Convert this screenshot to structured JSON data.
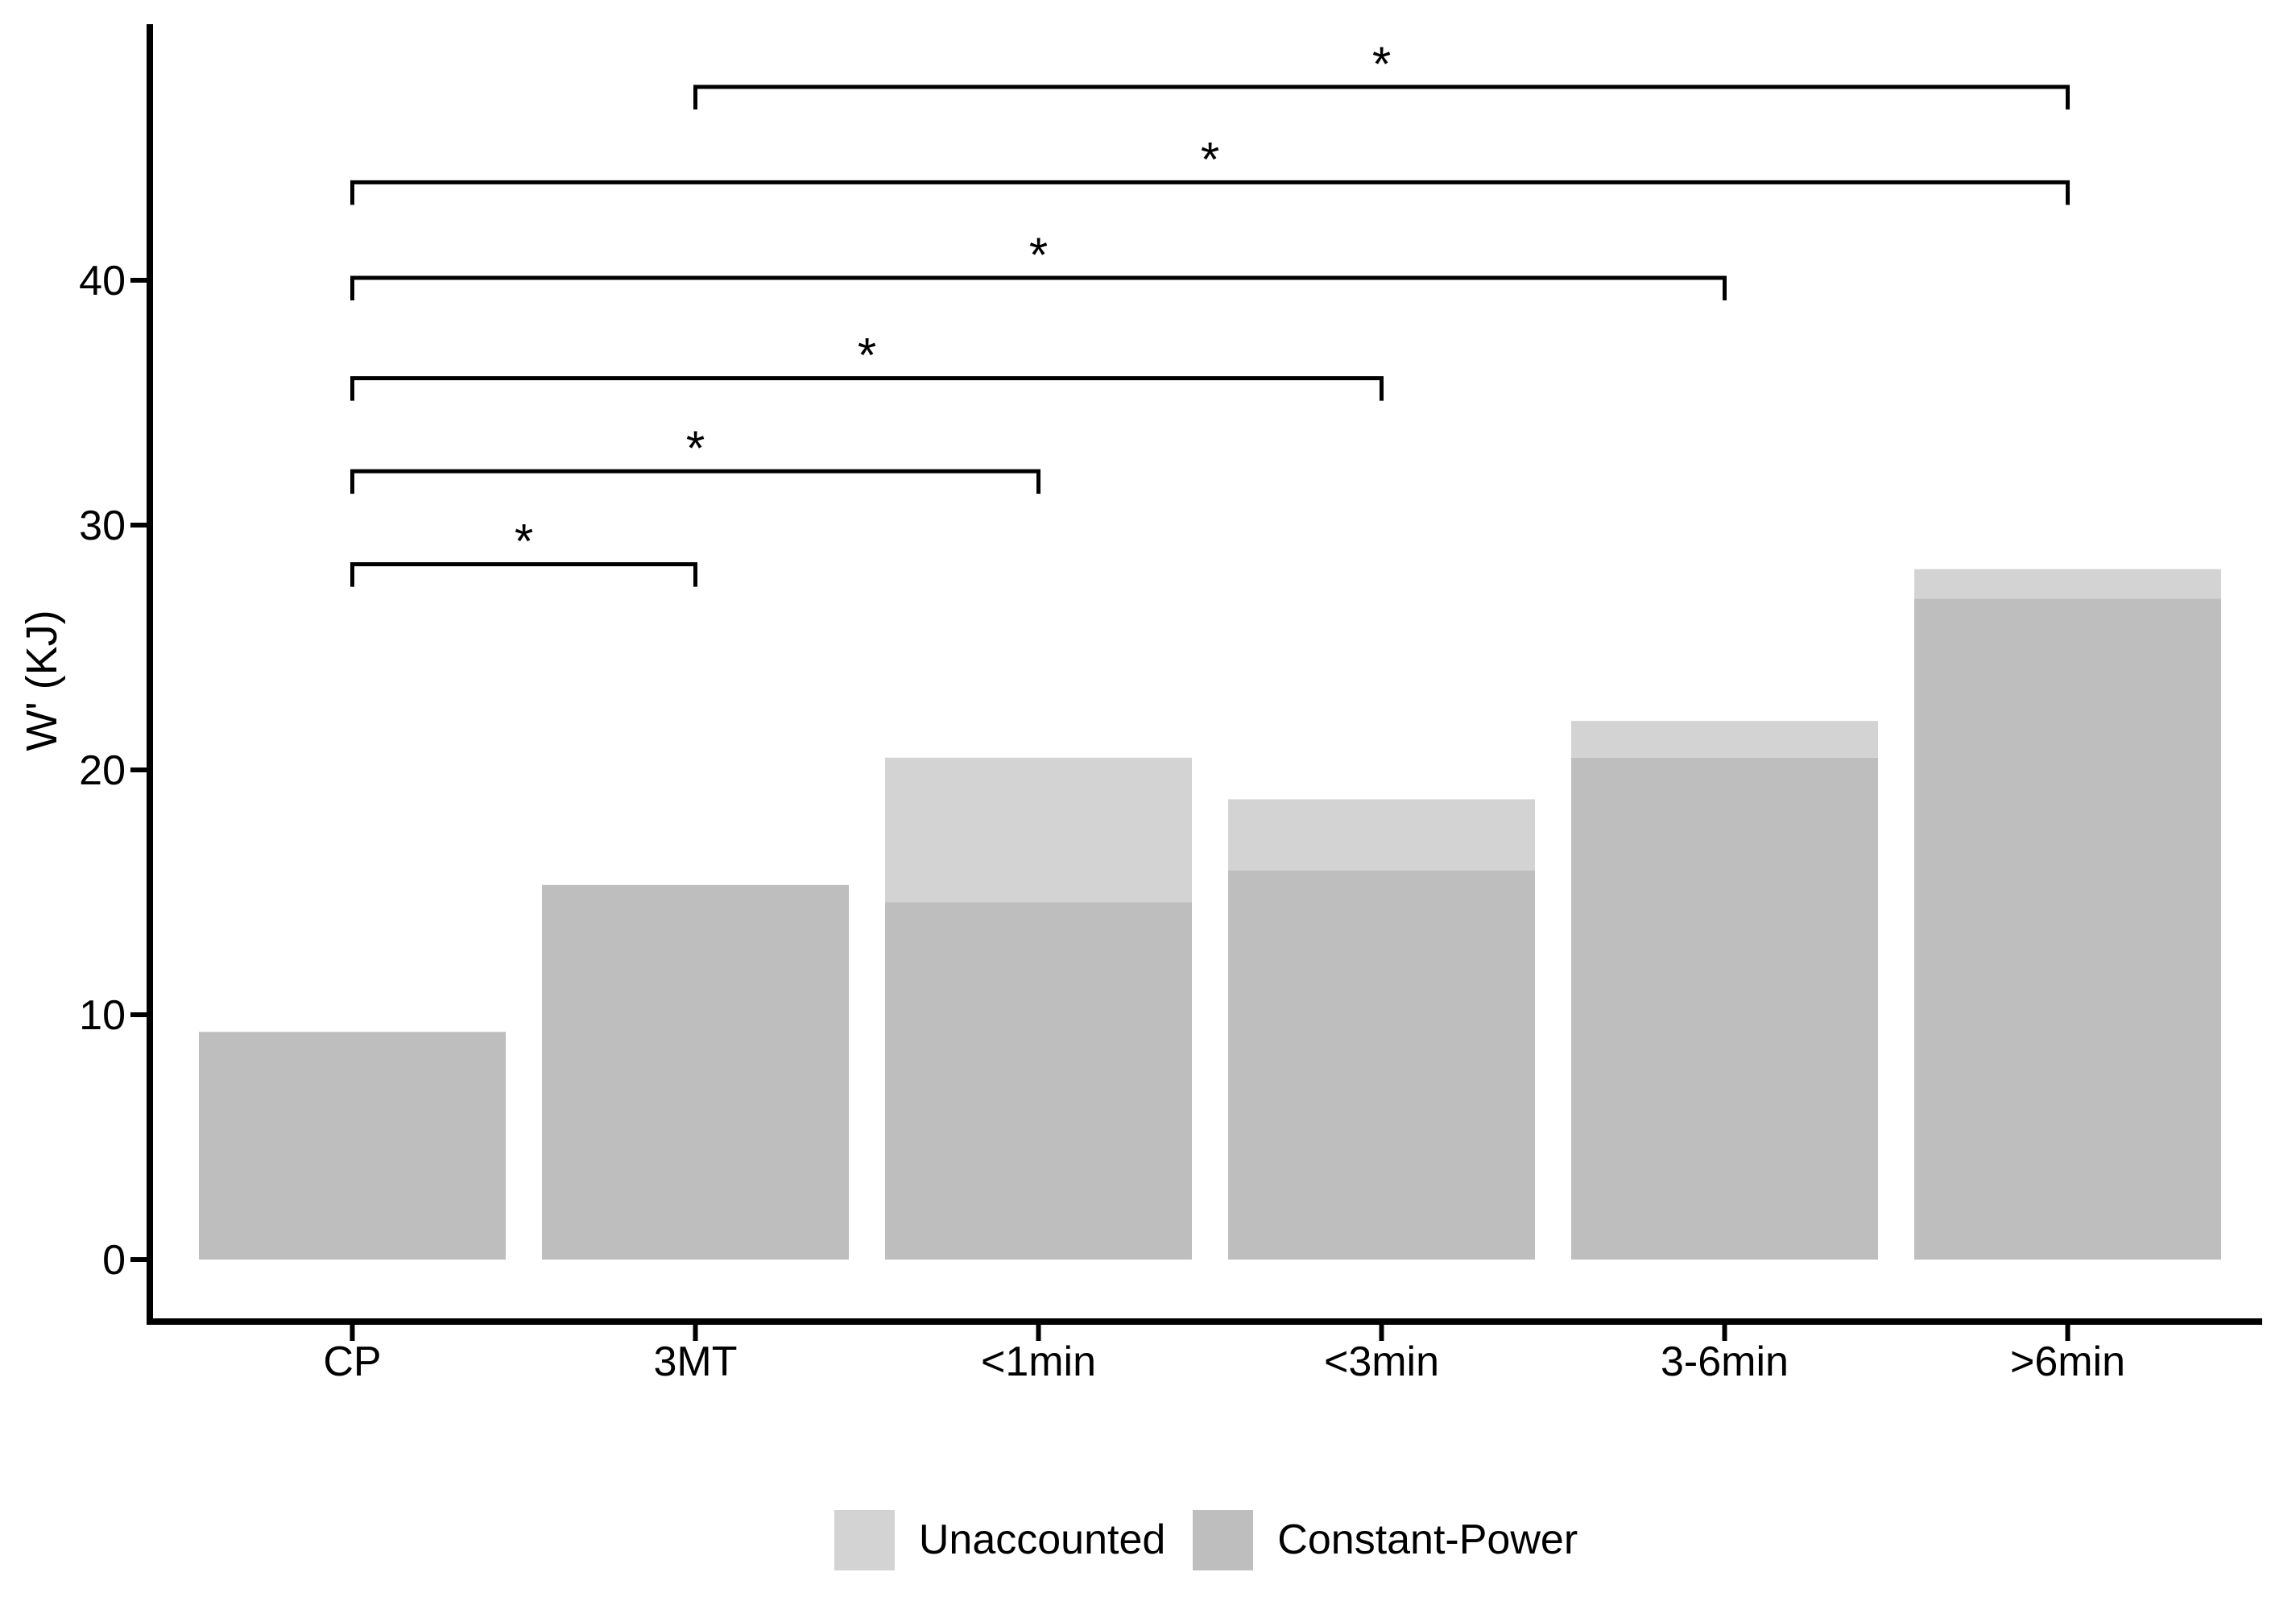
{
  "figure": {
    "background_color": "#ffffff",
    "axis_color": "#000000",
    "legend": {
      "position": "bottom",
      "items": [
        {
          "label": "Unaccounted",
          "color": "#d3d3d3"
        },
        {
          "label": "Constant-Power",
          "color": "#bebebe"
        }
      ]
    }
  },
  "chart_data": {
    "type": "bar",
    "stacked": true,
    "title": "",
    "xlabel": "",
    "ylabel": "W' (KJ)",
    "categories": [
      "CP",
      "3MT",
      "<1min",
      "<3min",
      "3-6min",
      ">6min"
    ],
    "series": [
      {
        "name": "Constant-Power",
        "color": "#bebebe",
        "values": [
          9.3,
          15.3,
          14.6,
          15.9,
          20.5,
          27.0
        ]
      },
      {
        "name": "Unaccounted",
        "color": "#d3d3d3",
        "values": [
          0,
          0,
          5.9,
          2.9,
          1.5,
          1.2
        ]
      }
    ],
    "totals": [
      9.3,
      15.3,
      20.5,
      18.8,
      22.0,
      28.2
    ],
    "ylim": [
      0,
      49
    ],
    "yticks": [
      0,
      10,
      20,
      30,
      40
    ],
    "grid": false,
    "legend_position": "bottom",
    "significance_brackets": [
      {
        "from": "3MT",
        "to": ">6min",
        "label": "*",
        "height_kj": 47.9
      },
      {
        "from": "CP",
        "to": ">6min",
        "label": "*",
        "height_kj": 44.0
      },
      {
        "from": "CP",
        "to": "3-6min",
        "label": "*",
        "height_kj": 40.1
      },
      {
        "from": "CP",
        "to": "<3min",
        "label": "*",
        "height_kj": 36.0
      },
      {
        "from": "CP",
        "to": "<1min",
        "label": "*",
        "height_kj": 32.2
      },
      {
        "from": "CP",
        "to": "3MT",
        "label": "*",
        "height_kj": 28.4
      }
    ]
  }
}
